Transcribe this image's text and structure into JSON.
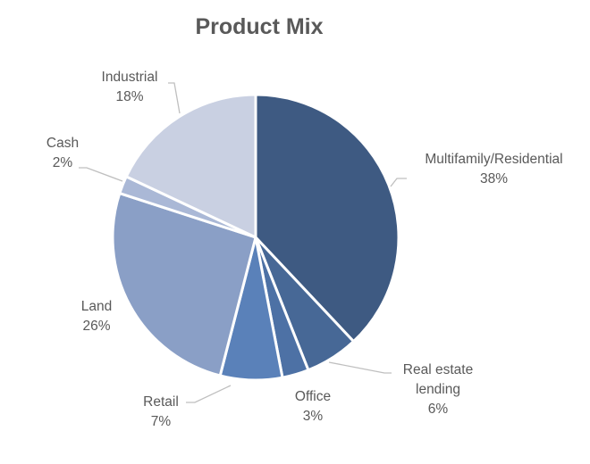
{
  "chart_data": {
    "type": "pie",
    "title": "Product Mix",
    "start_angle_deg": 0,
    "direction": "clockwise",
    "slices": [
      {
        "label": "Multifamily/Residential",
        "value": 38,
        "display": "38%",
        "color": "#3e5a82"
      },
      {
        "label": "Real estate lending",
        "value": 6,
        "display": "6%",
        "color": "#476896"
      },
      {
        "label": "Office",
        "value": 3,
        "display": "3%",
        "color": "#4d71a5"
      },
      {
        "label": "Retail",
        "value": 7,
        "display": "7%",
        "color": "#5a81b9"
      },
      {
        "label": "Land",
        "value": 26,
        "display": "26%",
        "color": "#8a9fc6"
      },
      {
        "label": "Cash",
        "value": 2,
        "display": "2%",
        "color": "#aab8d6"
      },
      {
        "label": "Industrial",
        "value": 18,
        "display": "18%",
        "color": "#c9d0e2"
      }
    ],
    "legend": "none (data labels with leader lines)",
    "label_color": "#595959"
  },
  "labels": {
    "multifamily": {
      "name": "Multifamily/Residential",
      "pct": "38%"
    },
    "lending": {
      "name1": "Real estate",
      "name2": "lending",
      "pct": "6%"
    },
    "office": {
      "name": "Office",
      "pct": "3%"
    },
    "retail": {
      "name": "Retail",
      "pct": "7%"
    },
    "land": {
      "name": "Land",
      "pct": "26%"
    },
    "cash": {
      "name": "Cash",
      "pct": "2%"
    },
    "industrial": {
      "name": "Industrial",
      "pct": "18%"
    }
  }
}
